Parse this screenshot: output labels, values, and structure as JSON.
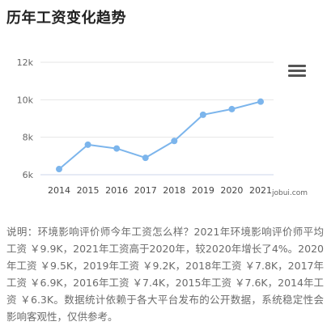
{
  "header": {
    "title": "历年工资变化趋势"
  },
  "toolbar": {
    "menu_icon": "hamburger-menu-icon"
  },
  "watermark": "jobui.com",
  "chart_data": {
    "type": "line",
    "title": "",
    "xlabel": "",
    "ylabel": "",
    "categories": [
      "2014",
      "2015",
      "2016",
      "2017",
      "2018",
      "2019",
      "2020",
      "2021"
    ],
    "series": [
      {
        "values": [
          6.3,
          7.6,
          7.4,
          6.9,
          7.8,
          9.2,
          9.5,
          9.9
        ]
      }
    ],
    "ylim": [
      6,
      12
    ],
    "yticks": [
      6,
      8,
      10,
      12
    ],
    "ytick_labels": [
      "6k",
      "8k",
      "10k",
      "12k"
    ],
    "grid": true,
    "colors": {
      "line": "#7cb5ec",
      "grid": "#e6e6e6",
      "axis": "#ccd6eb",
      "tick_text": "#666666"
    }
  },
  "description": "说明：环境影响评价师今年工资怎么样？2021年环境影响评价师平均工资 ￥9.9K，2021年工资高于2020年，较2020年增长了4%。2020年工资 ￥9.5K，2019年工资 ￥9.2K，2018年工资 ￥7.8K，2017年工资 ￥6.9K，2016年工资 ￥7.4K，2015年工资 ￥7.6K，2014年工资 ￥6.3K。数据统计依赖于各大平台发布的公开数据，系统稳定性会影响客观性，仅供参考。"
}
